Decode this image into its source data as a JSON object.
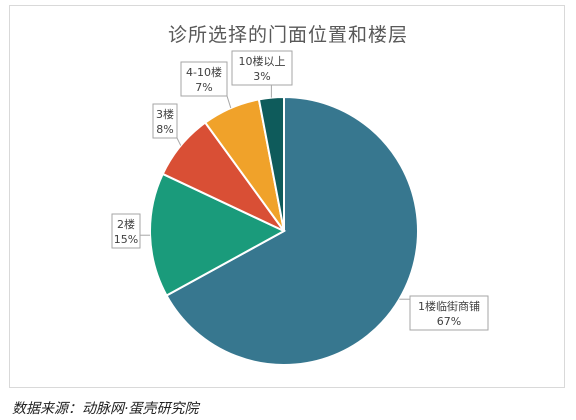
{
  "chart_data": {
    "type": "pie",
    "title": "诊所选择的门面位置和楼层",
    "slices": [
      {
        "label": "1楼临街商铺",
        "value": 67,
        "value_label": "67%",
        "color": "#37778f"
      },
      {
        "label": "2楼",
        "value": 15,
        "value_label": "15%",
        "color": "#1a9b7b"
      },
      {
        "label": "3楼",
        "value": 8,
        "value_label": "8%",
        "color": "#d94f35"
      },
      {
        "label": "4-10楼",
        "value": 7,
        "value_label": "7%",
        "color": "#f0a22a"
      },
      {
        "label": "10楼以上",
        "value": 3,
        "value_label": "3%",
        "color": "#0e5b5b"
      }
    ]
  },
  "source": "数据来源：动脉网·蛋壳研究院"
}
